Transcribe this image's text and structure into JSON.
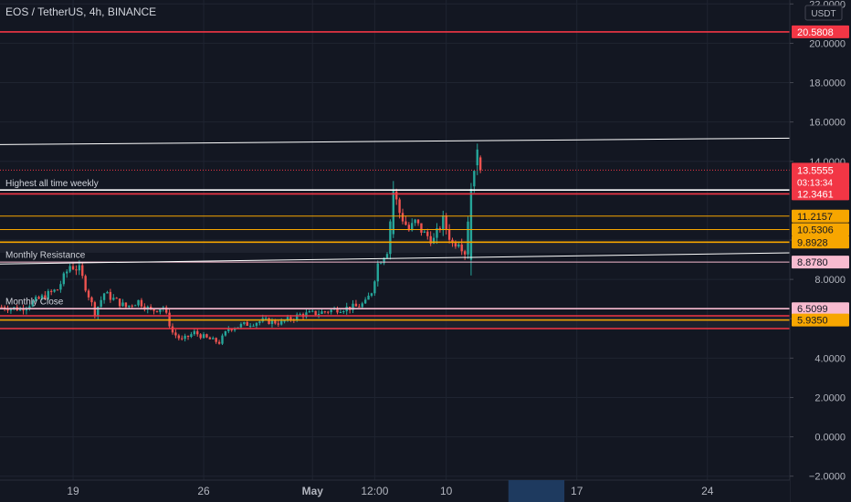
{
  "header": {
    "title": "EOS / TetherUS, 4h, BINANCE"
  },
  "currency": "USDT",
  "chart_data": {
    "type": "candlestick",
    "symbol": "EOS / TetherUS",
    "interval": "4h",
    "exchange": "BINANCE",
    "ylim": [
      -2.2,
      22.2
    ],
    "y_ticks": [
      "22.0000",
      "20.0000",
      "18.0000",
      "16.0000",
      "14.0000",
      "10.0000",
      "8.0000",
      "6.0000",
      "4.0000",
      "2.0000",
      "0.0000",
      "−2.0000"
    ],
    "y_tick_values": [
      22,
      20,
      18,
      16,
      14,
      10,
      8,
      6,
      4,
      2,
      0,
      -2
    ],
    "x_ticks": [
      {
        "label": "19",
        "bar": 23
      },
      {
        "label": "26",
        "bar": 65
      },
      {
        "label": "May",
        "bar": 100
      },
      {
        "label": "12:00",
        "bar": 120
      },
      {
        "label": "10",
        "bar": 143
      },
      {
        "label": "17",
        "bar": 185
      },
      {
        "label": "24",
        "bar": 227
      }
    ],
    "x_highlight": {
      "from_bar": 163,
      "to_bar": 181
    },
    "bar_count": 254,
    "levels": [
      {
        "value": 20.5808,
        "label": "20.5808",
        "color": "#f23645",
        "style": "solid",
        "width": 1.6
      },
      {
        "value": 12.5411,
        "label": "12.5411",
        "color": "#ffffff",
        "style": "solid",
        "width": 1.6
      },
      {
        "value": 12.3461,
        "label": "12.3461",
        "color": "#f23645",
        "style": "solid",
        "width": 1.6
      },
      {
        "value": 11.2157,
        "label": "11.2157",
        "color": "#f7a600",
        "style": "solid",
        "width": 1
      },
      {
        "value": 10.5306,
        "label": "10.5306",
        "color": "#f7a600",
        "style": "solid",
        "width": 1
      },
      {
        "value": 9.8928,
        "label": "9.8928",
        "color": "#f7a600",
        "style": "solid",
        "width": 1.6
      },
      {
        "value": 8.878,
        "label": "8.8780",
        "color": "#f8bbd0",
        "style": "solid",
        "width": 1
      },
      {
        "value": 6.5099,
        "label": "6.5099",
        "color": "#f8bbd0",
        "style": "solid",
        "width": 1.6
      },
      {
        "value": 5.935,
        "label": "5.9350",
        "color": "#f7a600",
        "style": "solid",
        "width": 1.6
      }
    ],
    "extra_lines": [
      {
        "value": 6.15,
        "color": "#f23645"
      },
      {
        "value": 5.5,
        "color": "#f23645"
      }
    ],
    "trendlines": [
      {
        "from_bar": -2,
        "from_value": 14.85,
        "to_bar": 254,
        "to_value": 15.18,
        "color": "#ffffff"
      },
      {
        "from_bar": -2,
        "from_value": 8.78,
        "to_bar": 254,
        "to_value": 9.35,
        "color": "#ffffff"
      }
    ],
    "annotations": [
      {
        "text": "Highest all time weekly",
        "bar": 0,
        "value": 12.55
      },
      {
        "text": "Monthly Resistance",
        "bar": 0,
        "value": 8.9
      },
      {
        "text": "Monthly Close",
        "bar": 0,
        "value": 6.55
      }
    ],
    "current_price": {
      "value": 13.5555,
      "label": "13.5555",
      "countdown": "03:13:34",
      "color": "#f23645"
    },
    "anchors": [
      [
        0,
        6.6
      ],
      [
        6,
        6.5
      ],
      [
        12,
        7.0
      ],
      [
        18,
        7.5
      ],
      [
        22,
        8.7
      ],
      [
        25,
        8.5
      ],
      [
        28,
        7.2
      ],
      [
        30,
        6.3
      ],
      [
        33,
        7.3
      ],
      [
        36,
        7.0
      ],
      [
        40,
        6.6
      ],
      [
        44,
        6.9
      ],
      [
        48,
        6.4
      ],
      [
        52,
        6.6
      ],
      [
        55,
        5.3
      ],
      [
        58,
        4.9
      ],
      [
        62,
        5.3
      ],
      [
        66,
        5.0
      ],
      [
        70,
        4.8
      ],
      [
        73,
        5.5
      ],
      [
        78,
        5.7
      ],
      [
        84,
        5.9
      ],
      [
        90,
        5.8
      ],
      [
        96,
        6.2
      ],
      [
        102,
        6.3
      ],
      [
        108,
        6.5
      ],
      [
        114,
        6.6
      ],
      [
        117,
        6.8
      ],
      [
        119,
        7.4
      ],
      [
        121,
        8.8
      ],
      [
        124,
        9.5
      ],
      [
        126,
        12.5
      ],
      [
        128,
        11.4
      ],
      [
        131,
        10.5
      ],
      [
        133,
        10.9
      ],
      [
        136,
        10.3
      ],
      [
        139,
        10.0
      ],
      [
        142,
        11.0
      ],
      [
        145,
        9.8
      ],
      [
        147,
        10.0
      ],
      [
        149,
        9.4
      ],
      [
        151,
        12.8
      ],
      [
        153,
        14.8
      ],
      [
        154,
        14.0
      ]
    ]
  }
}
